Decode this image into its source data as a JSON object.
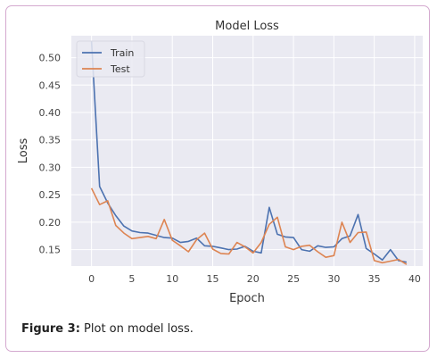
{
  "caption": {
    "label": "Figure 3:",
    "text": " Plot on model loss."
  },
  "chart_data": {
    "type": "line",
    "title": "Model  Loss",
    "xlabel": "Epoch",
    "ylabel": "Loss",
    "xlim": [
      -2.5,
      41
    ],
    "ylim": [
      0.12,
      0.54
    ],
    "xticks": [
      0,
      5,
      10,
      15,
      20,
      25,
      30,
      35,
      40
    ],
    "yticks": [
      0.15,
      0.2,
      0.25,
      0.3,
      0.35,
      0.4,
      0.45,
      0.5
    ],
    "grid": true,
    "legend": "top-left",
    "background": "#eaeaf2",
    "series": [
      {
        "name": "Train",
        "color": "#4c72b0",
        "x": [
          0,
          1,
          2,
          3,
          4,
          5,
          6,
          7,
          8,
          9,
          10,
          11,
          12,
          13,
          14,
          15,
          16,
          17,
          18,
          19,
          20,
          21,
          22,
          23,
          24,
          25,
          26,
          27,
          28,
          29,
          30,
          31,
          32,
          33,
          34,
          35,
          36,
          37,
          38,
          39
        ],
        "values": [
          0.53,
          0.265,
          0.235,
          0.212,
          0.193,
          0.184,
          0.181,
          0.18,
          0.176,
          0.172,
          0.171,
          0.163,
          0.165,
          0.171,
          0.157,
          0.156,
          0.153,
          0.15,
          0.151,
          0.156,
          0.147,
          0.144,
          0.227,
          0.178,
          0.173,
          0.172,
          0.15,
          0.147,
          0.157,
          0.154,
          0.155,
          0.17,
          0.175,
          0.214,
          0.152,
          0.142,
          0.131,
          0.15,
          0.13,
          0.127
        ]
      },
      {
        "name": "Test",
        "color": "#dd8452",
        "x": [
          0,
          1,
          2,
          3,
          4,
          5,
          6,
          7,
          8,
          9,
          10,
          11,
          12,
          13,
          14,
          15,
          16,
          17,
          18,
          19,
          20,
          21,
          22,
          23,
          24,
          25,
          26,
          27,
          28,
          29,
          30,
          31,
          32,
          33,
          34,
          35,
          36,
          37,
          38,
          39
        ],
        "values": [
          0.262,
          0.232,
          0.239,
          0.194,
          0.18,
          0.17,
          0.172,
          0.174,
          0.17,
          0.205,
          0.167,
          0.157,
          0.146,
          0.168,
          0.18,
          0.151,
          0.143,
          0.142,
          0.163,
          0.155,
          0.144,
          0.163,
          0.196,
          0.209,
          0.155,
          0.15,
          0.156,
          0.158,
          0.146,
          0.136,
          0.139,
          0.2,
          0.163,
          0.181,
          0.182,
          0.13,
          0.126,
          0.129,
          0.132,
          0.123
        ]
      }
    ]
  }
}
